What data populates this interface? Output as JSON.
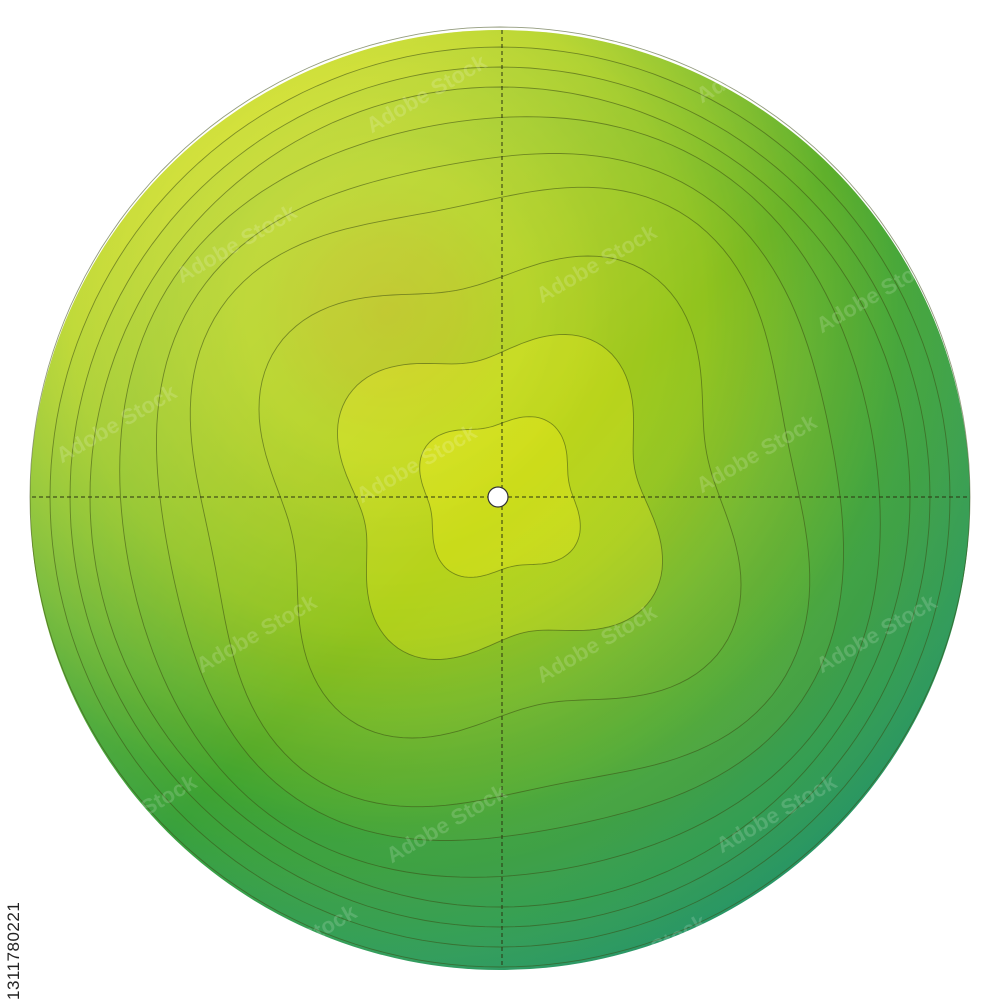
{
  "stock_id": "1311780221",
  "watermark": "Adobe Stock",
  "colors": {
    "center": "#ffd600",
    "yellow": "#f7f21a",
    "lime": "#bcd616",
    "green": "#2f9a36",
    "teal": "#15906e",
    "contour": "#3a4a12",
    "crosshair": "#2b3310",
    "dot_fill": "#ffffff"
  },
  "diagram": {
    "contour_count": 10,
    "crosshair": true,
    "center_marker": true
  }
}
